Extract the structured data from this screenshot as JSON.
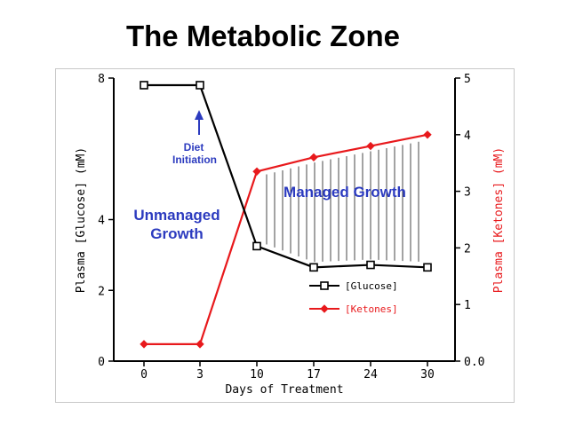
{
  "slide": {
    "title": "The Metabolic Zone"
  },
  "chart_data": {
    "type": "line",
    "x": [
      0,
      3,
      10,
      17,
      24,
      30
    ],
    "x_tick_labels": [
      "0",
      "3",
      "10",
      "17",
      "24",
      "30"
    ],
    "xlabel": "Days of Treatment",
    "ylabel_left": "Plasma [Glucose] (mM)",
    "ylabel_right": "Plasma [Ketones] (mM)",
    "ylim_left": [
      0,
      8
    ],
    "ylim_right": [
      0,
      5
    ],
    "y_left_ticks": [
      "0",
      "2",
      "4",
      "8"
    ],
    "y_right_ticks": [
      "0.0",
      "1",
      "2",
      "3",
      "4",
      "5"
    ],
    "series": [
      {
        "name": "[Glucose]",
        "axis": "left",
        "color": "#000000",
        "marker": "square",
        "values": [
          7.8,
          7.8,
          3.25,
          2.65,
          2.72,
          2.65
        ]
      },
      {
        "name": "[Ketones]",
        "axis": "right",
        "color": "#e8191c",
        "marker": "diamond",
        "values": [
          0.3,
          0.3,
          3.35,
          3.6,
          3.8,
          4.0
        ]
      }
    ],
    "annotations": {
      "diet_line1": "Diet",
      "diet_line2": "Initiation",
      "unmanaged_line1": "Unmanaged",
      "unmanaged_line2": "Growth",
      "managed": "Managed Growth"
    },
    "legend": {
      "position": "bottom-right"
    },
    "colors": {
      "annotation": "#2c3bbf",
      "ketones": "#e8191c",
      "glucose": "#000000"
    }
  }
}
